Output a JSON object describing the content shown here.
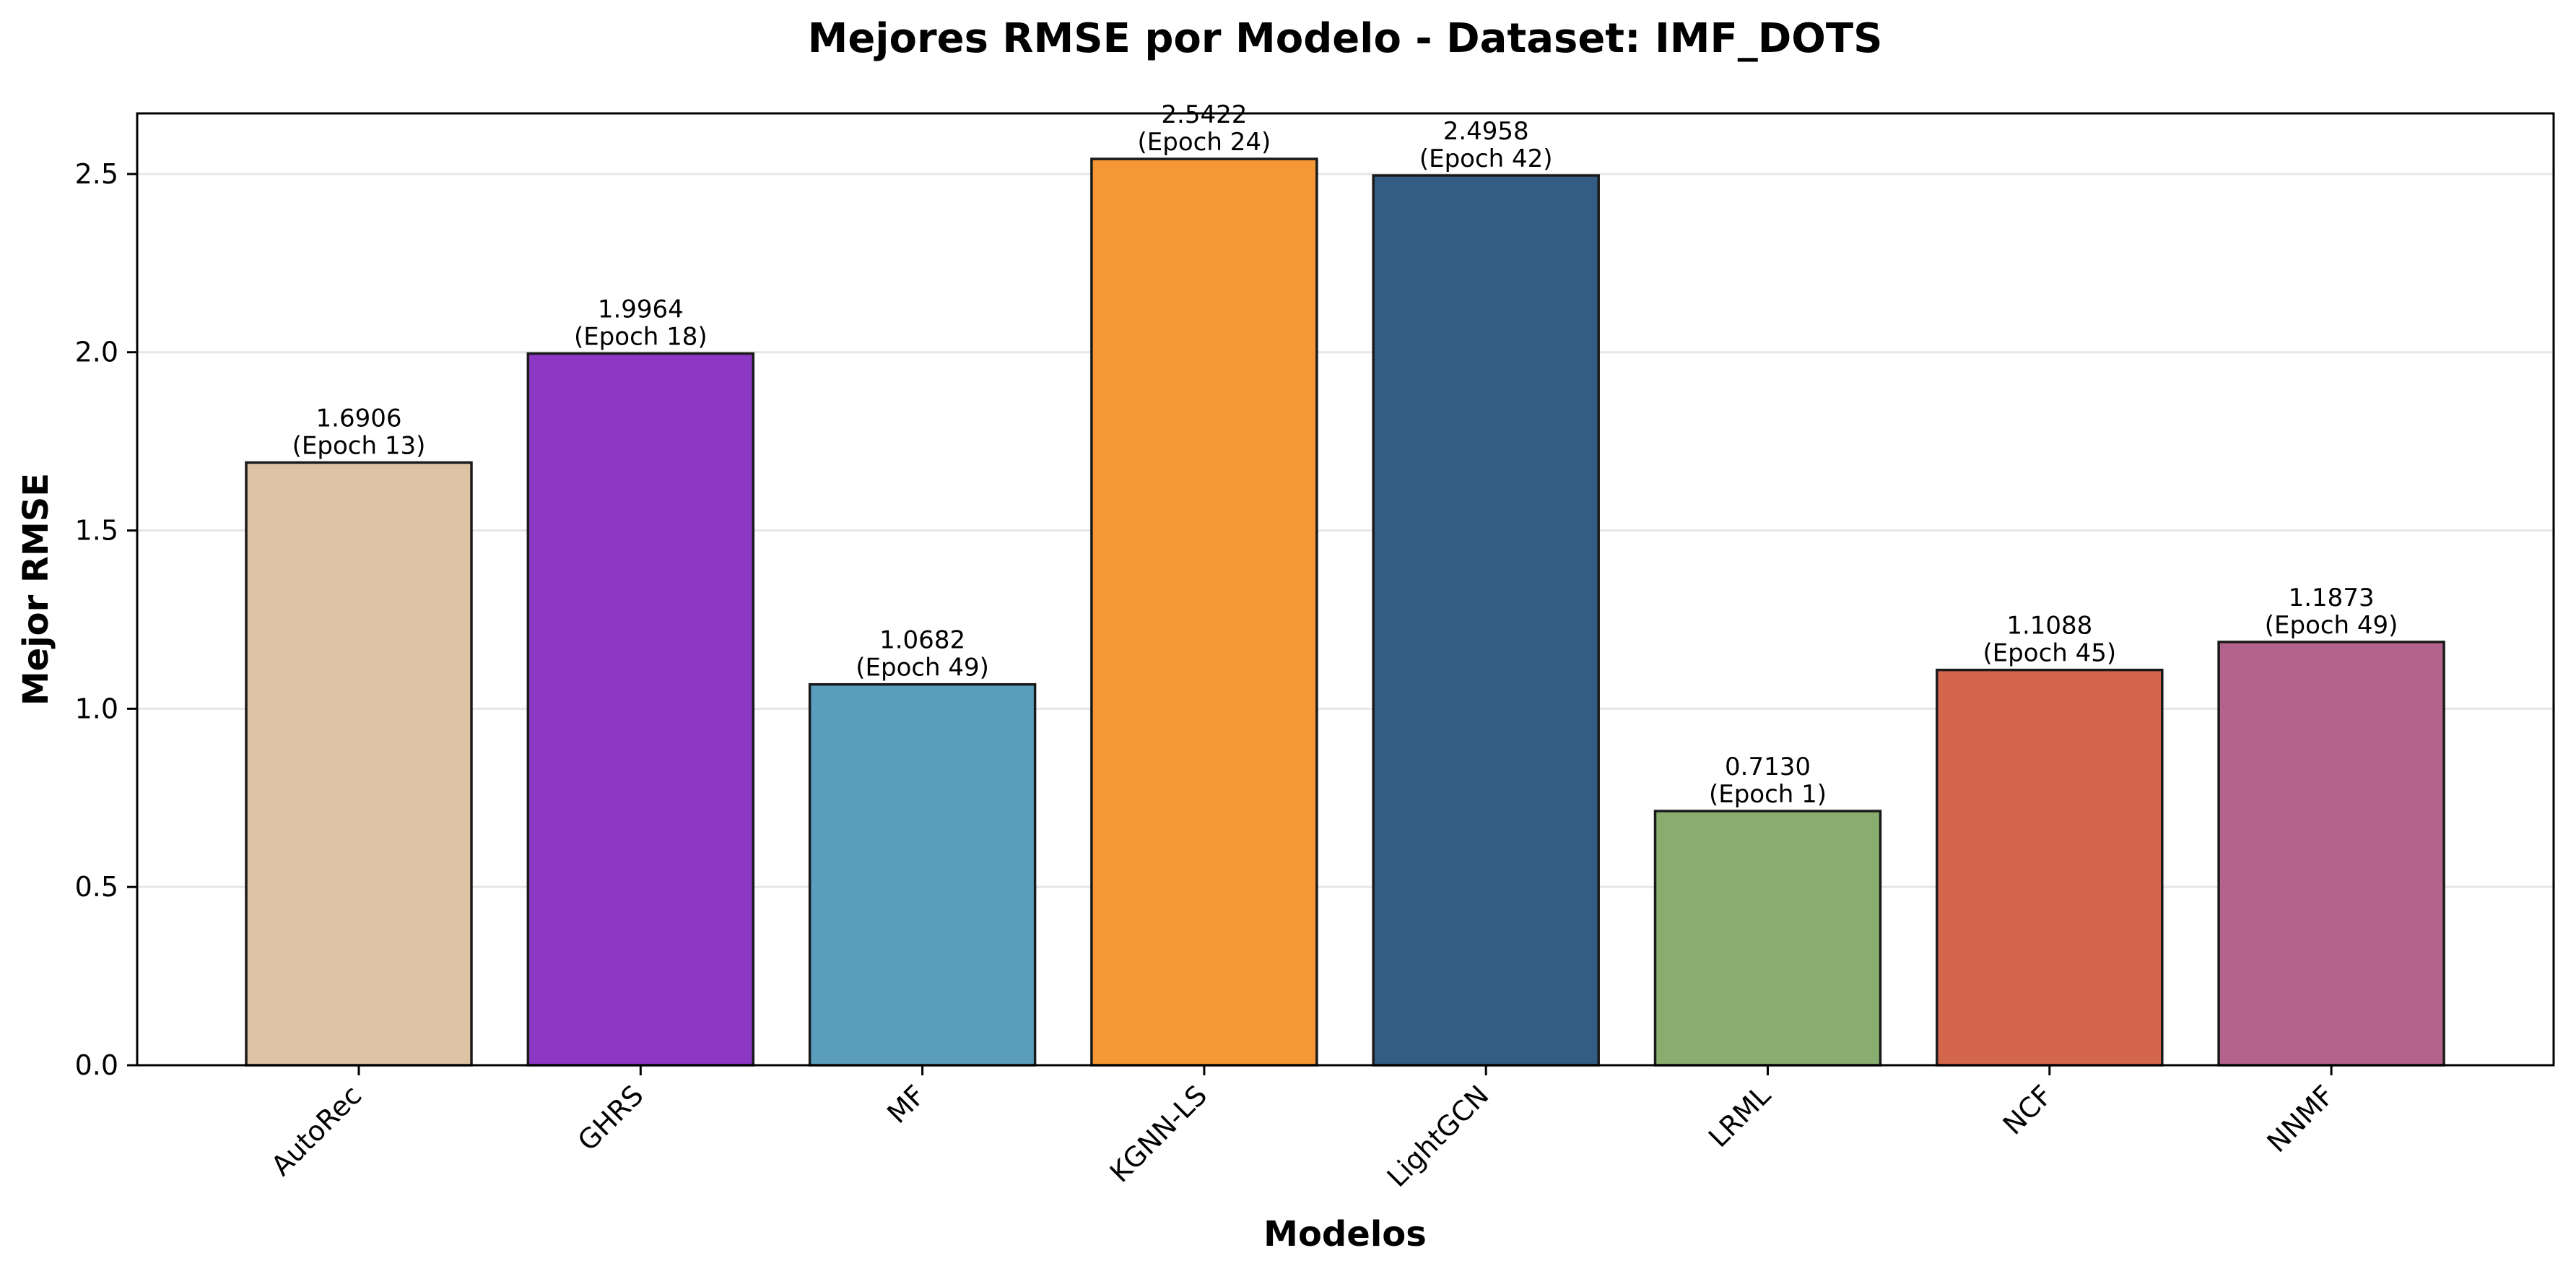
{
  "chart_data": {
    "type": "bar",
    "title": "Mejores RMSE por Modelo - Dataset: IMF_DOTS",
    "xlabel": "Modelos",
    "ylabel": "Mejor RMSE",
    "ylim": [
      0,
      2.67
    ],
    "yticks": [
      "0.0",
      "0.5",
      "1.0",
      "1.5",
      "2.0",
      "2.5"
    ],
    "grid": "horizontal",
    "categories": [
      "AutoRec",
      "GHRS",
      "MF",
      "KGNN-LS",
      "LightGCN",
      "LRML",
      "NCF",
      "NNMF"
    ],
    "values": [
      1.6906,
      1.9964,
      1.0682,
      2.5422,
      2.4958,
      0.713,
      1.1088,
      1.1873
    ],
    "value_labels": [
      "1.6906",
      "1.9964",
      "1.0682",
      "2.5422",
      "2.4958",
      "0.7130",
      "1.1088",
      "1.1873"
    ],
    "epoch_labels": [
      "(Epoch 13)",
      "(Epoch 18)",
      "(Epoch 49)",
      "(Epoch 24)",
      "(Epoch 42)",
      "(Epoch 1)",
      "(Epoch 45)",
      "(Epoch 49)"
    ],
    "colors": [
      "#DCC3A4",
      "#8C38C4",
      "#5A9DBD",
      "#F59734",
      "#345D85",
      "#89AD6F",
      "#D4664C",
      "#B3638C"
    ]
  }
}
